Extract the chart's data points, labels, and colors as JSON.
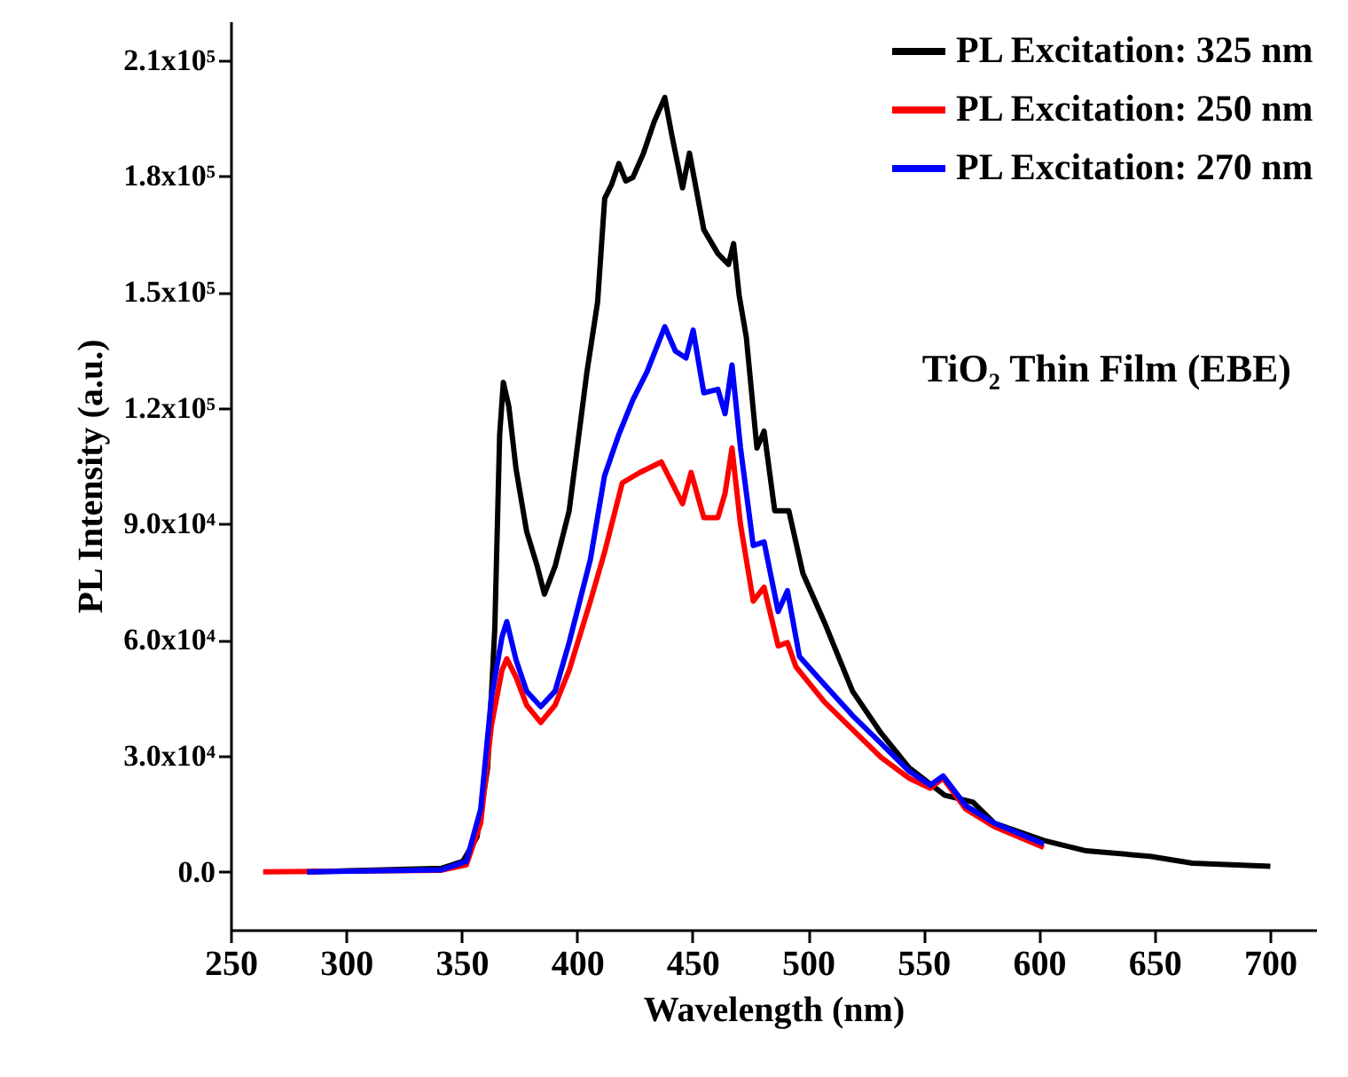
{
  "chart_data": {
    "type": "line",
    "xlabel": "Wavelength (nm)",
    "ylabel": "PL Intensity (a.u.)",
    "annotations": [
      "TiO₂ Thin Film (EBE)"
    ],
    "xlim": [
      250,
      720
    ],
    "ylim": [
      -15000,
      220000
    ],
    "xticks": [
      250,
      300,
      350,
      400,
      450,
      500,
      550,
      600,
      650,
      700
    ],
    "yticks": [
      {
        "value": 0,
        "label": "0.0"
      },
      {
        "value": 30000,
        "label": "3.0x10⁴"
      },
      {
        "value": 60000,
        "label": "6.0x10⁴"
      },
      {
        "value": 90000,
        "label": "9.0x10⁴"
      },
      {
        "value": 120000,
        "label": "1.2x10⁵"
      },
      {
        "value": 150000,
        "label": "1.5x10⁵"
      },
      {
        "value": 180000,
        "label": "1.8x10⁵"
      },
      {
        "value": 210000,
        "label": "2.1x10⁵"
      }
    ],
    "grid": false,
    "legend": "top right",
    "line_style": "solid",
    "marker": "none",
    "series": [
      {
        "name": "PL Excitation: 325 nm",
        "color": "#000000",
        "x": [
          283.1,
          341.4,
          350.6,
          356.7,
          361.3,
          364.4,
          366.5,
          368.1,
          370.5,
          373.6,
          378.2,
          382.8,
          385.9,
          390.5,
          396.6,
          404.3,
          408.9,
          412.0,
          415.0,
          418.1,
          421.1,
          424.2,
          428.8,
          433.4,
          438.0,
          441.1,
          445.7,
          448.7,
          454.9,
          461.0,
          465.6,
          467.8,
          470.2,
          473.3,
          477.9,
          481.0,
          485.6,
          491.7,
          497.8,
          507.0,
          519.3,
          531.6,
          543.8,
          559.2,
          571.4,
          580.6,
          602.1,
          620.5,
          648.1,
          666.5,
          700.2
        ],
        "values": [
          0,
          900,
          2700,
          9000,
          26900,
          62900,
          113000,
          126600,
          120300,
          104200,
          88000,
          79000,
          71800,
          79000,
          93400,
          129300,
          147300,
          174200,
          177800,
          183200,
          178700,
          179600,
          185900,
          194000,
          200300,
          190400,
          176900,
          185900,
          166100,
          159900,
          157100,
          162500,
          149100,
          138300,
          109600,
          114000,
          93400,
          93400,
          77200,
          64700,
          46700,
          35900,
          26900,
          19800,
          18000,
          12600,
          8100,
          5400,
          4000,
          2200,
          1400
        ]
      },
      {
        "name": "PL Excitation: 250 nm",
        "color": "#ff0000",
        "x": [
          264.1,
          341.4,
          352.1,
          358.3,
          362.9,
          367.5,
          369.6,
          373.6,
          378.2,
          384.3,
          390.5,
          396.6,
          405.8,
          411.9,
          419.6,
          427.3,
          436.5,
          445.7,
          449.4,
          454.9,
          461.0,
          464.1,
          467.1,
          470.8,
          476.3,
          481.0,
          487.1,
          491.1,
          494.8,
          507.0,
          519.3,
          531.6,
          543.8,
          553.0,
          558.5,
          568.3,
          580.6,
          602.1
        ],
        "values": [
          0,
          400,
          1800,
          12600,
          37700,
          52100,
          55100,
          50300,
          43100,
          38600,
          43100,
          52100,
          70000,
          82600,
          100600,
          103300,
          106000,
          95200,
          103300,
          91600,
          91600,
          97900,
          109600,
          89800,
          70000,
          73600,
          58400,
          59300,
          53000,
          44000,
          36800,
          29600,
          24200,
          21600,
          24200,
          16200,
          11700,
          6300
        ]
      },
      {
        "name": "PL Excitation: 270 nm",
        "color": "#0000ff",
        "x": [
          283.1,
          341.4,
          352.1,
          358.3,
          362.9,
          367.5,
          369.6,
          373.6,
          378.2,
          384.3,
          390.5,
          396.6,
          405.8,
          411.9,
          418.1,
          424.2,
          430.3,
          438.0,
          442.6,
          447.2,
          450.3,
          454.9,
          461.0,
          464.1,
          467.1,
          470.8,
          476.3,
          481.0,
          487.1,
          491.1,
          496.3,
          507.0,
          519.3,
          531.6,
          543.8,
          553.0,
          558.5,
          568.3,
          580.6,
          602.1
        ],
        "values": [
          0,
          500,
          2700,
          16200,
          44900,
          60700,
          64700,
          54800,
          46700,
          42700,
          46700,
          59300,
          80800,
          102400,
          113100,
          122100,
          129300,
          141000,
          134700,
          132900,
          140100,
          123900,
          124800,
          118500,
          131100,
          109600,
          84400,
          85300,
          67300,
          72700,
          55700,
          48500,
          40400,
          33200,
          26000,
          22400,
          24800,
          17100,
          12600,
          7200
        ]
      }
    ]
  }
}
